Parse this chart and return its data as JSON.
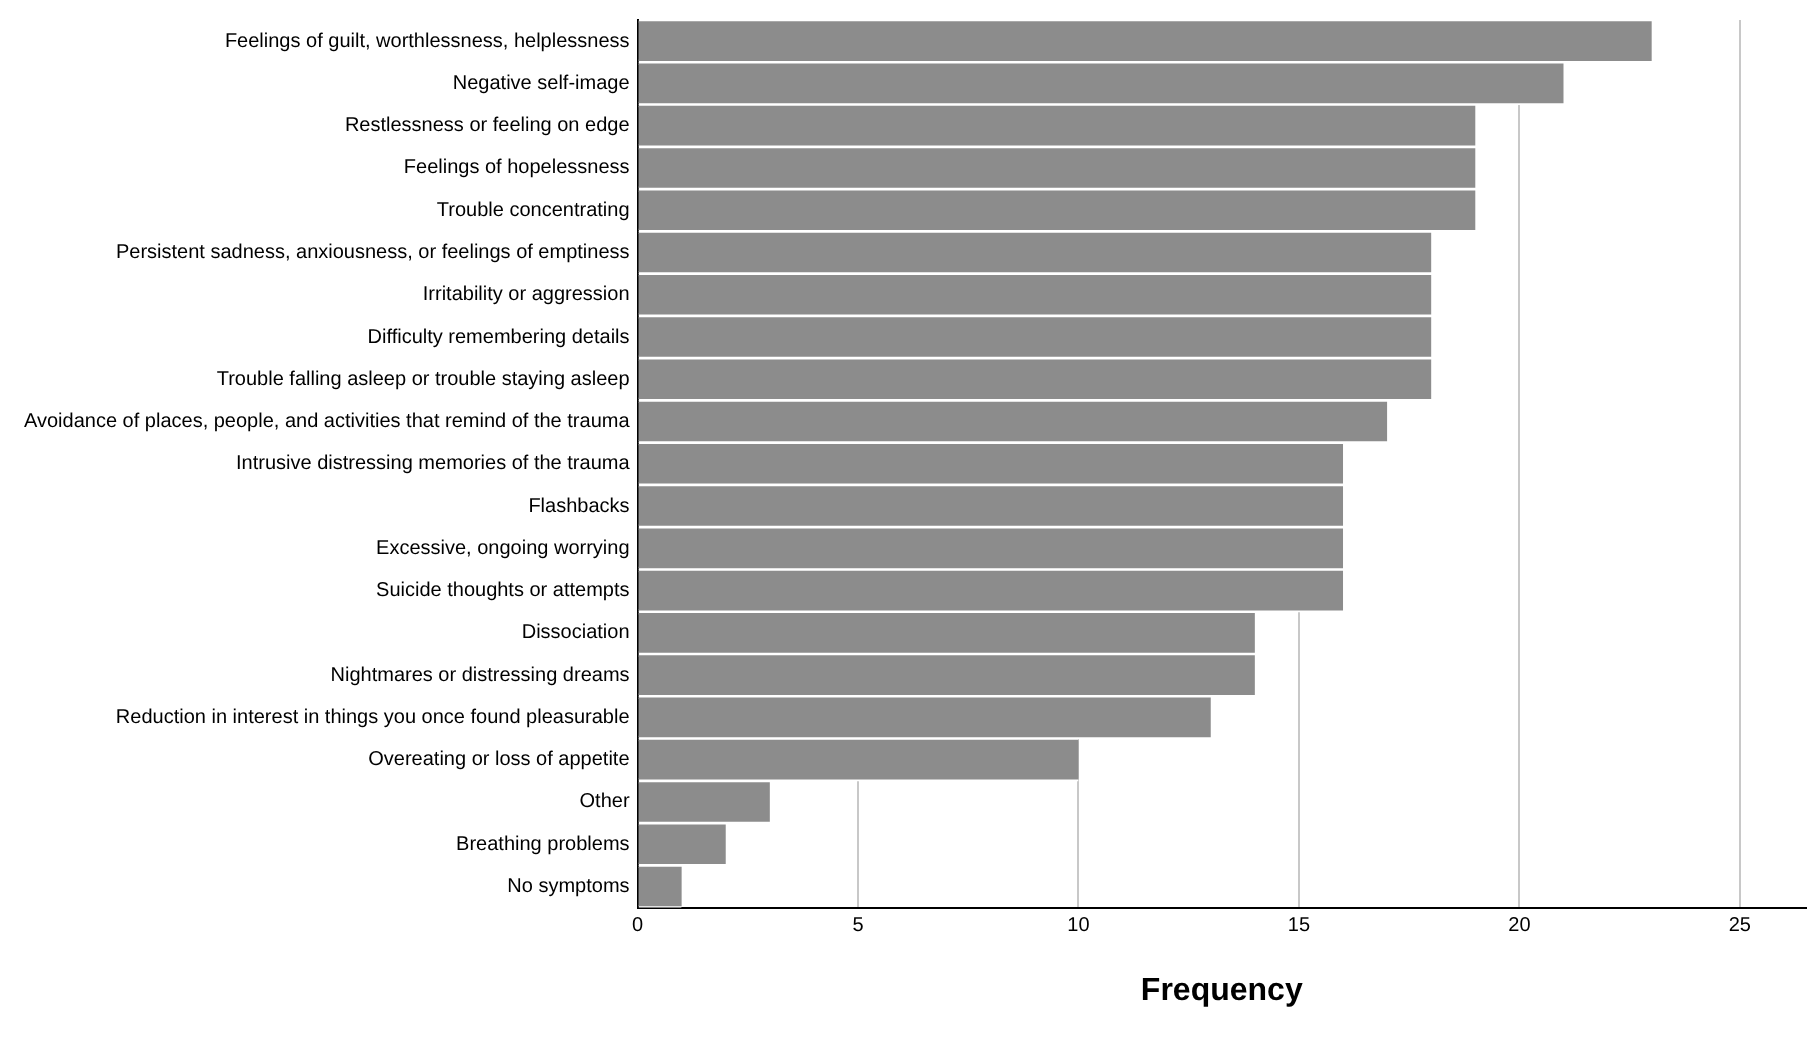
{
  "chart_data": {
    "type": "bar",
    "orientation": "horizontal",
    "xlabel": "Frequency",
    "categories": [
      "Feelings of guilt, worthlessness, helplessness",
      "Negative self-image",
      "Restlessness or feeling on edge",
      "Feelings of hopelessness",
      "Trouble concentrating",
      "Persistent sadness, anxiousness, or feelings of emptiness",
      "Irritability or aggression",
      "Difficulty remembering details",
      "Trouble falling asleep or trouble staying asleep",
      "Avoidance of places, people, and activities that remind of the trauma",
      "Intrusive distressing memories of the trauma",
      "Flashbacks",
      "Excessive, ongoing worrying",
      "Suicide thoughts or attempts",
      "Dissociation",
      "Nightmares or distressing dreams",
      "Reduction in interest in things you once found pleasurable",
      "Overeating or loss of appetite",
      "Other",
      "Breathing problems",
      "No symptoms"
    ],
    "values": [
      23,
      21,
      19,
      19,
      19,
      18,
      18,
      18,
      18,
      17,
      16,
      16,
      16,
      16,
      14,
      14,
      13,
      10,
      3,
      2,
      1
    ],
    "color": "#8c8c8c",
    "xlim": [
      0,
      26.5
    ],
    "xticks": [
      0,
      5,
      10,
      15,
      20,
      25
    ],
    "grid": "x",
    "legend": false
  }
}
